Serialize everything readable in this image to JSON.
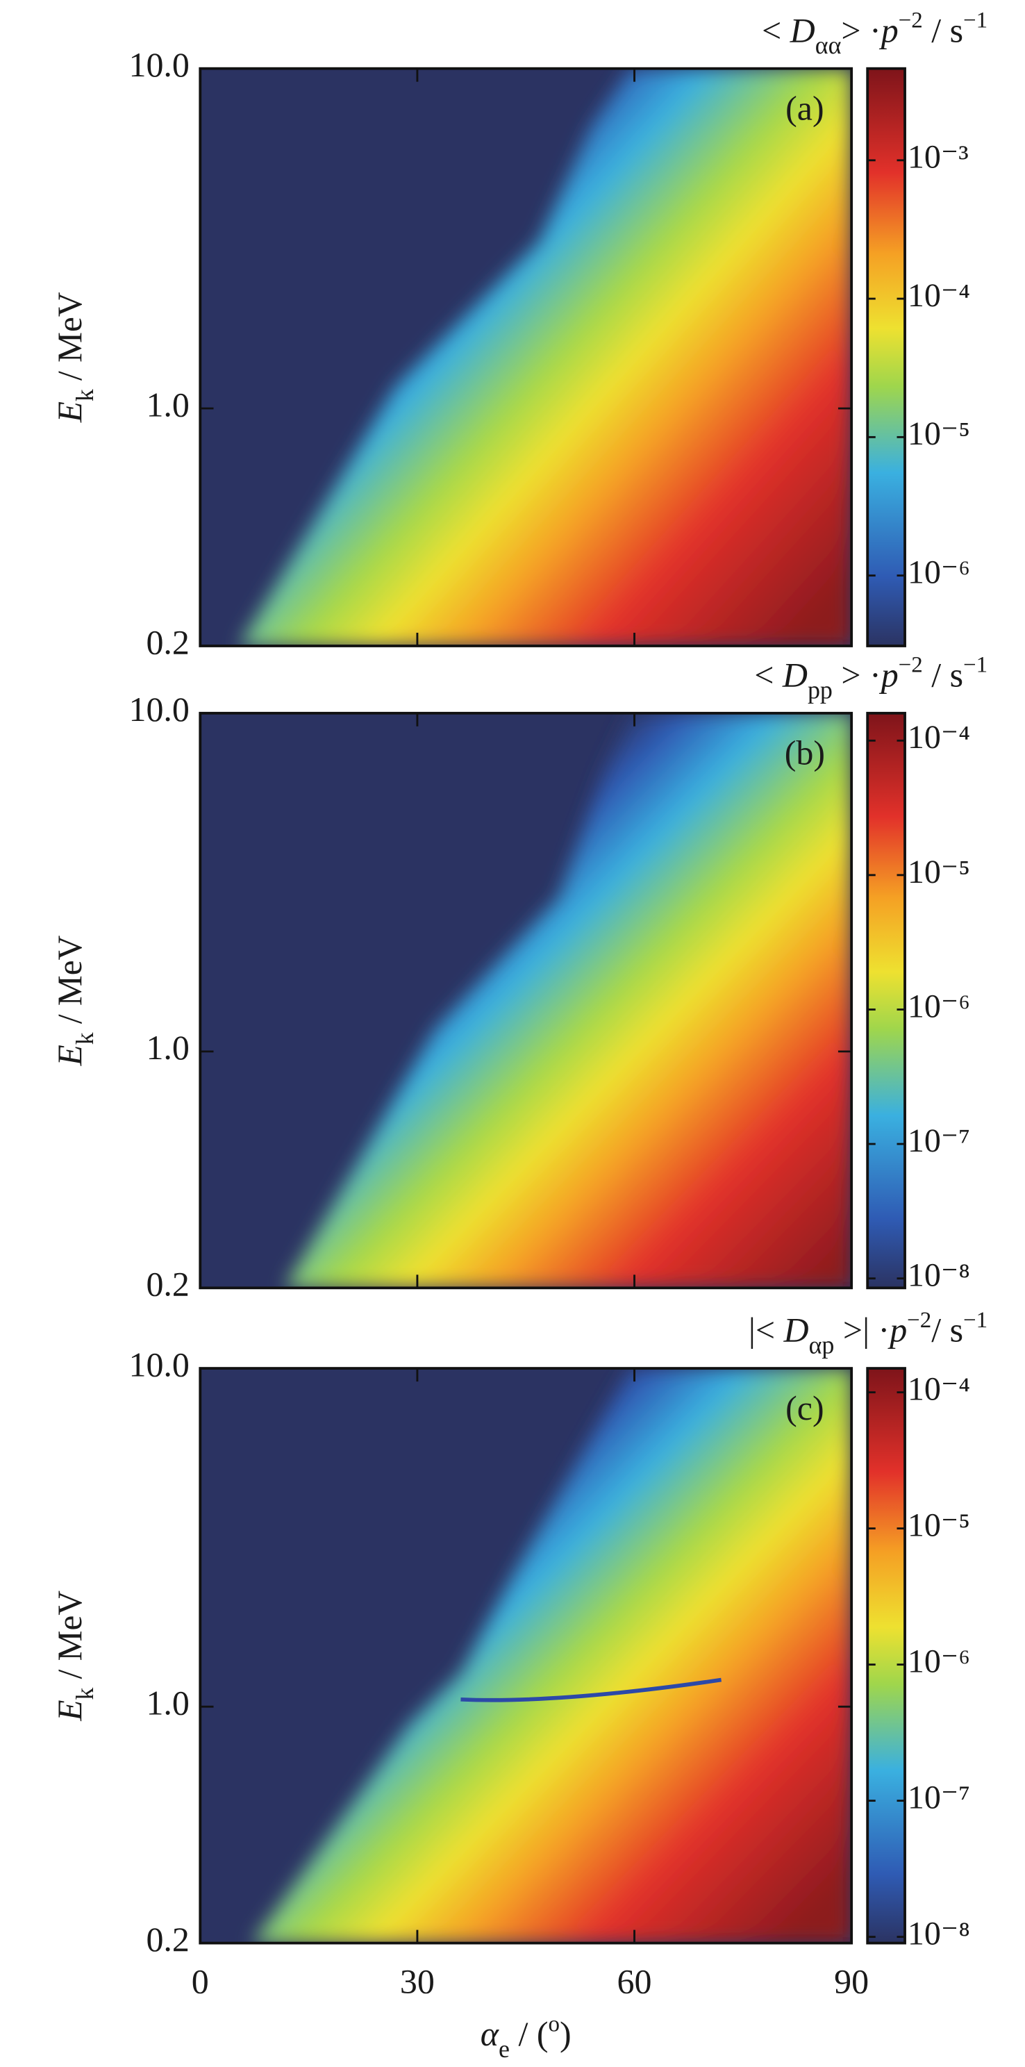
{
  "chart_data": [
    {
      "type": "heatmap",
      "panel_label": "(a)",
      "colorbar_label": [
        {
          "text": "< "
        },
        {
          "text": "D",
          "style": "italic"
        },
        {
          "text": "αα",
          "style": "sub"
        },
        {
          "text": "> ·"
        },
        {
          "text": "p",
          "style": "italic"
        },
        {
          "text": "−2",
          "style": "sup"
        },
        {
          "text": " / s"
        },
        {
          "text": "−1",
          "style": "sup"
        }
      ],
      "ylabel": [
        {
          "text": "E",
          "style": "italic"
        },
        {
          "text": "k",
          "style": "sub"
        },
        {
          "text": " / MeV"
        }
      ],
      "xlim": [
        0,
        90
      ],
      "xticks": [
        0,
        30,
        60,
        90
      ],
      "xtick_labels": false,
      "ylim": [
        0.2,
        10
      ],
      "yscale": "log",
      "yticks": [
        0.2,
        {
          "value": 1,
          "label": "1.0"
        },
        {
          "value": 10,
          "label": "10.0"
        }
      ],
      "clim": [
        3.1e-07,
        0.0046
      ],
      "cscale": "log",
      "cticks": [
        {
          "value": 1e-06,
          "label": "10⁻⁶"
        },
        {
          "value": 1e-05,
          "label": "10⁻⁵"
        },
        {
          "value": 0.0001,
          "label": "10⁻⁴"
        },
        {
          "value": 0.001,
          "label": "10⁻³"
        }
      ]
    },
    {
      "type": "heatmap",
      "panel_label": "(b)",
      "colorbar_label": [
        {
          "text": "< "
        },
        {
          "text": "D",
          "style": "italic"
        },
        {
          "text": "pp",
          "style": "sub"
        },
        {
          "text": " > ·"
        },
        {
          "text": "p",
          "style": "italic"
        },
        {
          "text": "−2",
          "style": "sup"
        },
        {
          "text": " / s"
        },
        {
          "text": "−1",
          "style": "sup"
        }
      ],
      "ylabel": [
        {
          "text": "E",
          "style": "italic"
        },
        {
          "text": "k",
          "style": "sub"
        },
        {
          "text": " / MeV"
        }
      ],
      "xlim": [
        0,
        90
      ],
      "xticks": [
        0,
        30,
        60,
        90
      ],
      "xtick_labels": false,
      "ylim": [
        0.2,
        10
      ],
      "yscale": "log",
      "yticks": [
        0.2,
        {
          "value": 1,
          "label": "1.0"
        },
        {
          "value": 10,
          "label": "10.0"
        }
      ],
      "clim": [
        8.5e-09,
        0.00016
      ],
      "cscale": "log",
      "cticks": [
        {
          "value": 1e-08,
          "label": "10⁻⁸"
        },
        {
          "value": 1e-07,
          "label": "10⁻⁷"
        },
        {
          "value": 1e-06,
          "label": "10⁻⁶"
        },
        {
          "value": 1e-05,
          "label": "10⁻⁵"
        },
        {
          "value": 0.0001,
          "label": "10⁻⁴"
        }
      ]
    },
    {
      "type": "heatmap",
      "panel_label": "(c)",
      "colorbar_label": [
        {
          "text": "|< "
        },
        {
          "text": "D",
          "style": "italic"
        },
        {
          "text": "αp",
          "style": "sub"
        },
        {
          "text": " >| ·"
        },
        {
          "text": "p",
          "style": "italic"
        },
        {
          "text": "−2",
          "style": "sup"
        },
        {
          "text": "/ s"
        },
        {
          "text": "−1",
          "style": "sup"
        }
      ],
      "ylabel": [
        {
          "text": "E",
          "style": "italic"
        },
        {
          "text": "k",
          "style": "sub"
        },
        {
          "text": " / MeV"
        }
      ],
      "xlabel": [
        {
          "text": "α",
          "style": "italic"
        },
        {
          "text": "e",
          "style": "sub"
        },
        {
          "text": " / ("
        },
        {
          "text": "o",
          "style": "sup"
        },
        {
          "text": ")"
        }
      ],
      "xlim": [
        0,
        90
      ],
      "xticks": [
        0,
        30,
        60,
        90
      ],
      "xtick_labels": true,
      "ylim": [
        0.2,
        10
      ],
      "yscale": "log",
      "yticks": [
        0.2,
        {
          "value": 1,
          "label": "1.0"
        },
        {
          "value": 10,
          "label": "10.0"
        }
      ],
      "clim": [
        9e-09,
        0.00015
      ],
      "cscale": "log",
      "cticks": [
        {
          "value": 1e-08,
          "label": "10⁻⁸"
        },
        {
          "value": 1e-07,
          "label": "10⁻⁷"
        },
        {
          "value": 1e-06,
          "label": "10⁻⁶"
        },
        {
          "value": 1e-05,
          "label": "10⁻⁵"
        },
        {
          "value": 0.0001,
          "label": "10⁻⁴"
        }
      ]
    }
  ]
}
